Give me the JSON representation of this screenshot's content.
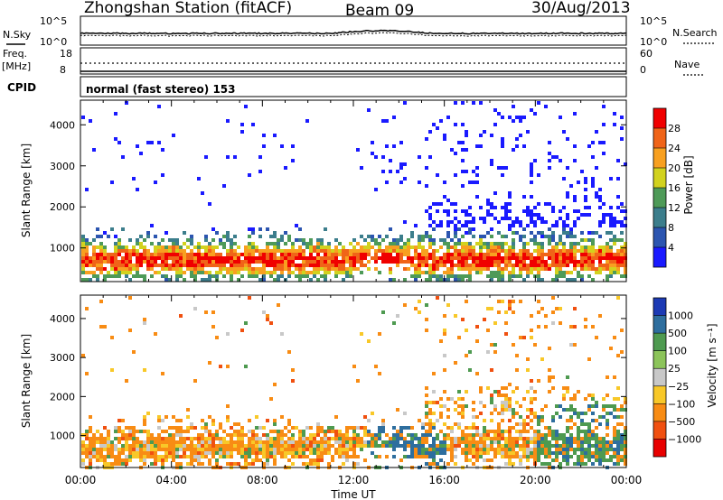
{
  "header": {
    "station": "Zhongshan Station (fitACF)",
    "beam": "Beam 09",
    "date": "30/Aug/2013"
  },
  "top_panels": {
    "nsky_label": "N.Sky",
    "nsearch_label": "N.Search",
    "noise_ticks": [
      "10^5",
      "10^0"
    ],
    "freq_label": "Freq.",
    "freq_unit": "[MHz]",
    "freq_ticks": [
      "18",
      "8"
    ],
    "nave_label": "Nave",
    "nave_ticks": [
      "60",
      "0"
    ],
    "cpid_label": "CPID",
    "cpid_text": "normal (fast stereo)  153"
  },
  "chart_data": [
    {
      "type": "heatmap",
      "name": "power",
      "ylabel": "Slant Range [km]",
      "xlabel": "",
      "ylim": [
        180,
        4600
      ],
      "xlim": [
        0,
        24
      ],
      "y_ticks": [
        "1000",
        "2000",
        "3000",
        "4000"
      ],
      "x_ticks": [],
      "colorbar": {
        "label": "Power [dB]",
        "ticks": [
          "4",
          "8",
          "12",
          "16",
          "20",
          "24",
          "28"
        ],
        "colors": [
          "#1a1aff",
          "#2c55b0",
          "#3c7e8c",
          "#4e9a58",
          "#d2d21e",
          "#f8a020",
          "#f06418",
          "#f00000"
        ]
      }
    },
    {
      "type": "heatmap",
      "name": "velocity",
      "ylabel": "Slant Range [km]",
      "xlabel": "Time UT",
      "ylim": [
        180,
        4600
      ],
      "xlim": [
        0,
        24
      ],
      "y_ticks": [
        "1000",
        "2000",
        "3000",
        "4000"
      ],
      "x_ticks": [
        "00:00",
        "04:00",
        "08:00",
        "12:00",
        "16:00",
        "20:00",
        "00:00"
      ],
      "colorbar": {
        "label": "Velocity [m s⁻¹]",
        "ticks": [
          "1000",
          "500",
          "100",
          "25",
          "−25",
          "−100",
          "−500",
          "−1000"
        ],
        "colors": [
          "#1c3ab4",
          "#2e6e9e",
          "#4e9a50",
          "#8cc45a",
          "#c8c8c8",
          "#f8c828",
          "#f88c14",
          "#f05010",
          "#e80000"
        ]
      }
    }
  ]
}
